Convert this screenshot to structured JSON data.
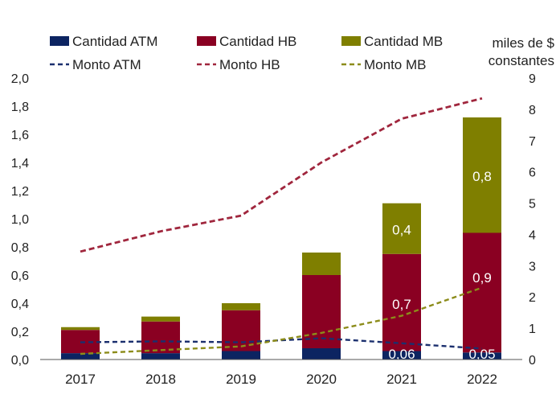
{
  "chart_data": {
    "type": "bar",
    "categories": [
      "2017",
      "2018",
      "2019",
      "2020",
      "2021",
      "2022"
    ],
    "stacked_series": [
      {
        "name": "Cantidad ATM",
        "color": "#0c2461",
        "values": [
          0.045,
          0.045,
          0.06,
          0.08,
          0.06,
          0.05
        ]
      },
      {
        "name": "Cantidad HB",
        "color": "#8a0022",
        "values": [
          0.165,
          0.225,
          0.29,
          0.52,
          0.69,
          0.85
        ]
      },
      {
        "name": "Cantidad MB",
        "color": "#7f7f00",
        "values": [
          0.02,
          0.035,
          0.05,
          0.16,
          0.36,
          0.82
        ]
      }
    ],
    "line_series": [
      {
        "name": "Monto ATM",
        "color": "#1b2f6e",
        "axis": "right",
        "values": [
          0.55,
          0.58,
          0.55,
          0.68,
          0.52,
          0.35
        ]
      },
      {
        "name": "Monto HB",
        "color": "#a0263d",
        "axis": "right",
        "values": [
          3.45,
          4.1,
          4.6,
          6.3,
          7.7,
          8.35
        ]
      },
      {
        "name": "Monto MB",
        "color": "#8c8c1a",
        "axis": "right",
        "values": [
          0.18,
          0.3,
          0.42,
          0.85,
          1.4,
          2.3
        ]
      }
    ],
    "bar_labels": [
      {
        "category": "2021",
        "series": "Cantidad ATM",
        "text": "0,06"
      },
      {
        "category": "2021",
        "series": "Cantidad HB",
        "text": "0,7"
      },
      {
        "category": "2021",
        "series": "Cantidad MB",
        "text": "0,4"
      },
      {
        "category": "2022",
        "series": "Cantidad ATM",
        "text": "0,05"
      },
      {
        "category": "2022",
        "series": "Cantidad HB",
        "text": "0,9"
      },
      {
        "category": "2022",
        "series": "Cantidad MB",
        "text": "0,8"
      }
    ],
    "left_axis": {
      "ylim": [
        0,
        2.0
      ],
      "ticks": [
        "0,0",
        "0,2",
        "0,4",
        "0,6",
        "0,8",
        "1,0",
        "1,2",
        "1,4",
        "1,6",
        "1,8",
        "2,0"
      ]
    },
    "right_axis": {
      "ylim": [
        0,
        9
      ],
      "ticks": [
        "0",
        "1",
        "2",
        "3",
        "4",
        "5",
        "6",
        "7",
        "8",
        "9"
      ],
      "label_line1": "miles de $",
      "label_line2": "constantes"
    },
    "legend_position": "top",
    "grid": false
  }
}
